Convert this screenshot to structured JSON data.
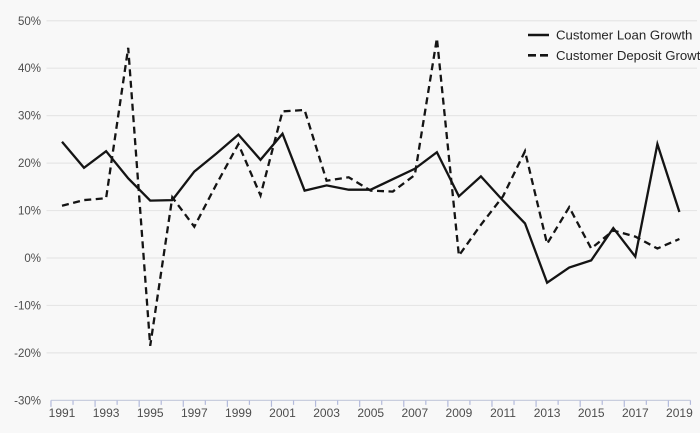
{
  "colors": {
    "background": "#f8f8f8",
    "line": "#141414",
    "grid": "#e6e6e6",
    "axis_line": "#c9cede",
    "tick": "#b3badb",
    "axis_text": "#4d4d4d",
    "legend_text": "#262626"
  },
  "legend": {
    "items": [
      {
        "label": "Customer Loan Growth",
        "style": "solid"
      },
      {
        "label": "Customer Deposit Growth",
        "style": "dashed"
      }
    ]
  },
  "axes": {
    "y_tick_labels": [
      "50%",
      "40%",
      "30%",
      "20%",
      "10%",
      "0%",
      "-10%",
      "-20%",
      "-30%"
    ],
    "y_tick_values": [
      50,
      40,
      30,
      20,
      10,
      0,
      -10,
      -20,
      -30
    ],
    "x_tick_labels": [
      "1991",
      "1993",
      "1995",
      "1997",
      "1999",
      "2001",
      "2003",
      "2005",
      "2007",
      "2009",
      "2011",
      "2013",
      "2015",
      "2017",
      "2019"
    ]
  },
  "chart_data": {
    "type": "line",
    "x": [
      1991,
      1992,
      1993,
      1994,
      1995,
      1996,
      1997,
      1998,
      1999,
      2000,
      2001,
      2002,
      2003,
      2004,
      2005,
      2006,
      2007,
      2008,
      2009,
      2010,
      2011,
      2012,
      2013,
      2014,
      2015,
      2016,
      2017,
      2018,
      2019
    ],
    "series": [
      {
        "name": "Customer Loan Growth",
        "line_style": "solid",
        "values": [
          24.5,
          19,
          22.5,
          16.8,
          12.1,
          12.2,
          18.2,
          22,
          26,
          20.7,
          26.2,
          14.2,
          15.3,
          14.4,
          14.4,
          16.6,
          18.8,
          22.3,
          13,
          17.2,
          12.1,
          7.3,
          -5.2,
          -2,
          -0.5,
          6.3,
          0.3,
          24,
          9.7
        ]
      },
      {
        "name": "Customer Deposit Growth",
        "line_style": "dashed",
        "values": [
          11,
          12.2,
          12.6,
          44.3,
          -18.5,
          12.8,
          6.6,
          15.5,
          24,
          13.2,
          30.9,
          31.2,
          16.3,
          17,
          14.2,
          14,
          17.5,
          46.3,
          0.5,
          7,
          13,
          22.5,
          3,
          10.7,
          2,
          5.8,
          4.5,
          2,
          4
        ]
      }
    ],
    "ylim": [
      -30,
      50
    ],
    "xlim": [
      1991,
      2019
    ],
    "title": "",
    "xlabel": "",
    "ylabel": "",
    "grid": "horizontal",
    "legend_position": "top-right",
    "y_unit": "percent"
  }
}
